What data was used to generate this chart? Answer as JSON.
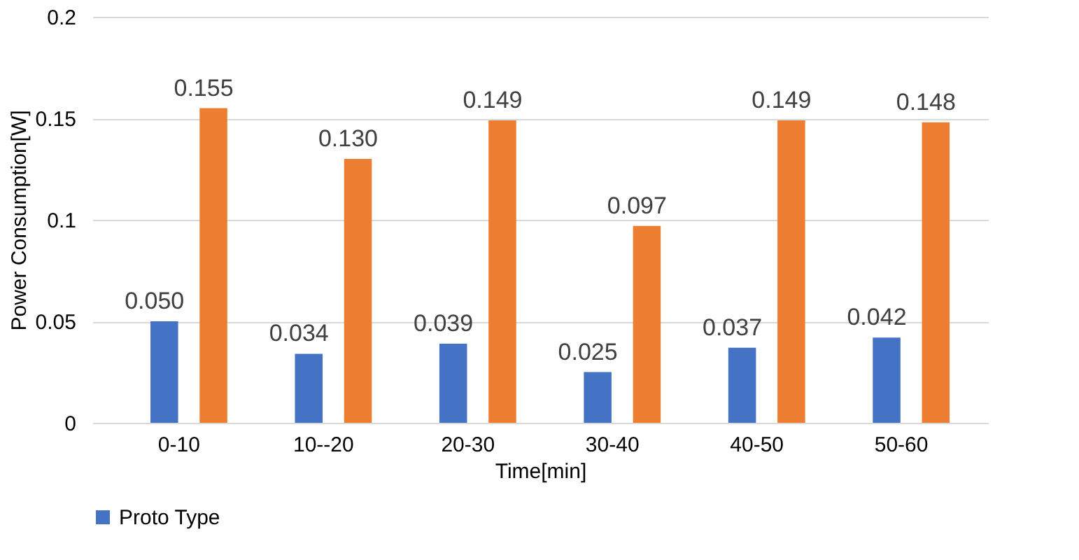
{
  "chart_data": {
    "type": "bar",
    "xlabel": "Time[min]",
    "ylabel": "Power Consumption[W]",
    "categories": [
      "0-10",
      "10--20",
      "20-30",
      "30-40",
      "40-50",
      "50-60"
    ],
    "series": [
      {
        "name": "Proto Type",
        "color": "#4472c4",
        "values": [
          0.05,
          0.034,
          0.039,
          0.025,
          0.037,
          0.042
        ],
        "value_labels": [
          "0.050",
          "0.034",
          "0.039",
          "0.025",
          "0.037",
          "0.042"
        ]
      },
      {
        "color": "#ed7d31",
        "values": [
          0.155,
          0.13,
          0.149,
          0.097,
          0.149,
          0.148
        ],
        "value_labels": [
          "0.155",
          "0.130",
          "0.149",
          "0.097",
          "0.149",
          "0.148"
        ]
      }
    ],
    "ylim": [
      0,
      0.2
    ],
    "yticks": [
      0,
      0.05,
      0.1,
      0.15,
      0.2
    ],
    "grid": "y",
    "legend": "bottom"
  }
}
